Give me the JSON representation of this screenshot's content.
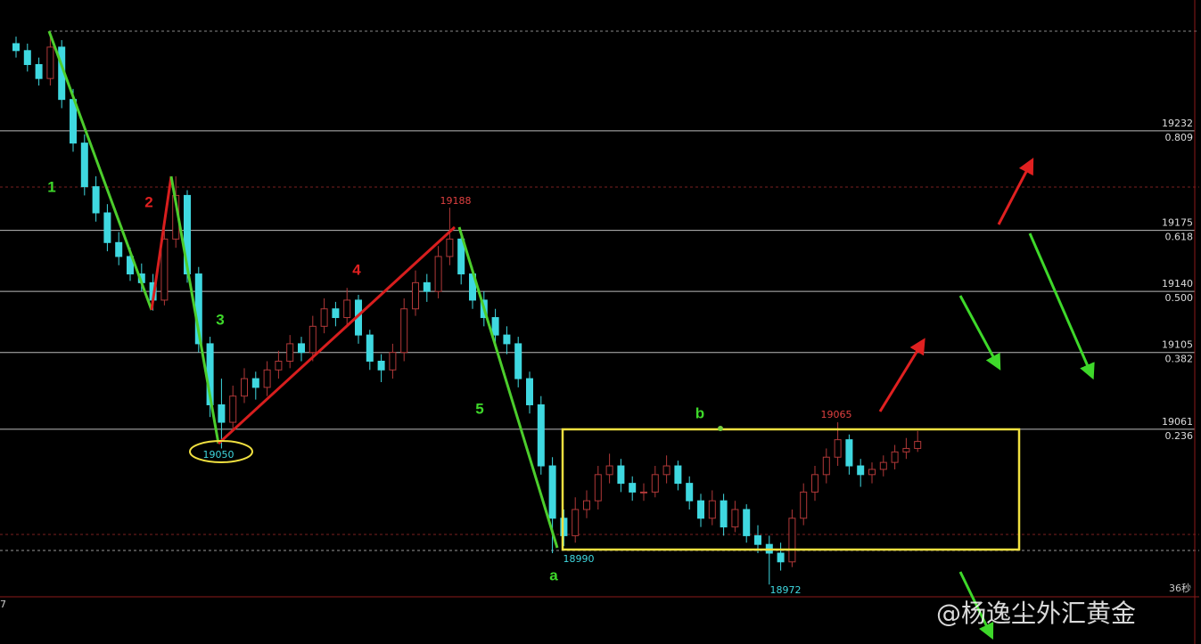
{
  "chart_data": {
    "type": "candlestick",
    "ylim": [
      18966,
      19307
    ],
    "up_color": "#b03838",
    "down_color": "#3fd8e0",
    "candles": [
      [
        19282,
        19286,
        19274,
        19278
      ],
      [
        19278,
        19282,
        19266,
        19270
      ],
      [
        19270,
        19274,
        19258,
        19262
      ],
      [
        19262,
        19289,
        19258,
        19280
      ],
      [
        19280,
        19284,
        19245,
        19250
      ],
      [
        19250,
        19256,
        19220,
        19225
      ],
      [
        19225,
        19230,
        19195,
        19200
      ],
      [
        19200,
        19206,
        19180,
        19185
      ],
      [
        19185,
        19190,
        19163,
        19168
      ],
      [
        19168,
        19174,
        19155,
        19160
      ],
      [
        19160,
        19165,
        19146,
        19150
      ],
      [
        19150,
        19156,
        19140,
        19145
      ],
      [
        19145,
        19150,
        19129,
        19135
      ],
      [
        19135,
        19175,
        19132,
        19170
      ],
      [
        19170,
        19206,
        19165,
        19195
      ],
      [
        19195,
        19198,
        19145,
        19150
      ],
      [
        19150,
        19154,
        19105,
        19110
      ],
      [
        19110,
        19114,
        19068,
        19075
      ],
      [
        19075,
        19090,
        19050,
        19065
      ],
      [
        19065,
        19086,
        19060,
        19080
      ],
      [
        19080,
        19096,
        19076,
        19090
      ],
      [
        19090,
        19094,
        19078,
        19085
      ],
      [
        19085,
        19100,
        19080,
        19095
      ],
      [
        19095,
        19106,
        19090,
        19100
      ],
      [
        19100,
        19115,
        19096,
        19110
      ],
      [
        19110,
        19114,
        19100,
        19105
      ],
      [
        19105,
        19126,
        19100,
        19120
      ],
      [
        19120,
        19136,
        19116,
        19130
      ],
      [
        19130,
        19134,
        19120,
        19125
      ],
      [
        19125,
        19142,
        19120,
        19135
      ],
      [
        19135,
        19138,
        19110,
        19115
      ],
      [
        19115,
        19118,
        19095,
        19100
      ],
      [
        19100,
        19104,
        19088,
        19095
      ],
      [
        19095,
        19110,
        19090,
        19105
      ],
      [
        19105,
        19136,
        19100,
        19130
      ],
      [
        19130,
        19152,
        19126,
        19145
      ],
      [
        19145,
        19150,
        19134,
        19140
      ],
      [
        19140,
        19166,
        19136,
        19160
      ],
      [
        19160,
        19188,
        19155,
        19170
      ],
      [
        19170,
        19174,
        19144,
        19150
      ],
      [
        19150,
        19154,
        19130,
        19135
      ],
      [
        19135,
        19140,
        19120,
        19125
      ],
      [
        19125,
        19130,
        19110,
        19115
      ],
      [
        19115,
        19120,
        19104,
        19110
      ],
      [
        19110,
        19114,
        19085,
        19090
      ],
      [
        19090,
        19094,
        19070,
        19075
      ],
      [
        19075,
        19080,
        19035,
        19040
      ],
      [
        19040,
        19045,
        18990,
        19010
      ],
      [
        19010,
        19015,
        18994,
        19000
      ],
      [
        19000,
        19022,
        18996,
        19015
      ],
      [
        19015,
        19026,
        19010,
        19020
      ],
      [
        19020,
        19040,
        19015,
        19035
      ],
      [
        19035,
        19047,
        19030,
        19040
      ],
      [
        19040,
        19044,
        19025,
        19030
      ],
      [
        19030,
        19034,
        19020,
        19025
      ],
      [
        19025,
        19030,
        19020,
        19025
      ],
      [
        19025,
        19040,
        19022,
        19035
      ],
      [
        19035,
        19046,
        19030,
        19040
      ],
      [
        19040,
        19043,
        19026,
        19030
      ],
      [
        19030,
        19034,
        19015,
        19020
      ],
      [
        19020,
        19024,
        19005,
        19010
      ],
      [
        19010,
        19026,
        19006,
        19020
      ],
      [
        19020,
        19024,
        19000,
        19005
      ],
      [
        19005,
        19020,
        19002,
        19015
      ],
      [
        19015,
        19018,
        18996,
        19000
      ],
      [
        19000,
        19006,
        18990,
        18995
      ],
      [
        18995,
        19000,
        18972,
        18990
      ],
      [
        18990,
        18996,
        18980,
        18985
      ],
      [
        18985,
        19015,
        18982,
        19010
      ],
      [
        19010,
        19030,
        19006,
        19025
      ],
      [
        19025,
        19040,
        19020,
        19035
      ],
      [
        19035,
        19050,
        19030,
        19045
      ],
      [
        19045,
        19065,
        19040,
        19055
      ],
      [
        19055,
        19058,
        19035,
        19040
      ],
      [
        19040,
        19044,
        19028,
        19035
      ],
      [
        19035,
        19042,
        19030,
        19038
      ],
      [
        19038,
        19046,
        19034,
        19042
      ],
      [
        19042,
        19052,
        19038,
        19048
      ],
      [
        19048,
        19056,
        19044,
        19050
      ],
      [
        19050,
        19060,
        19048,
        19054
      ]
    ],
    "levels": [
      {
        "price": 19232,
        "ratio": "0.809"
      },
      {
        "price": 19175,
        "ratio": "0.618"
      },
      {
        "price": 19140,
        "ratio": "0.500"
      },
      {
        "price": 19105,
        "ratio": "0.382"
      },
      {
        "price": 19061,
        "ratio": "0.236"
      }
    ],
    "waves": [
      "1",
      "2",
      "3",
      "4",
      "5",
      "a",
      "b"
    ],
    "price_labels": [
      "19188",
      "19050",
      "18990",
      "18972",
      "19065"
    ],
    "timer": "36秒",
    "corner": "7",
    "watermark": "@杨逸尘外汇黄金"
  }
}
